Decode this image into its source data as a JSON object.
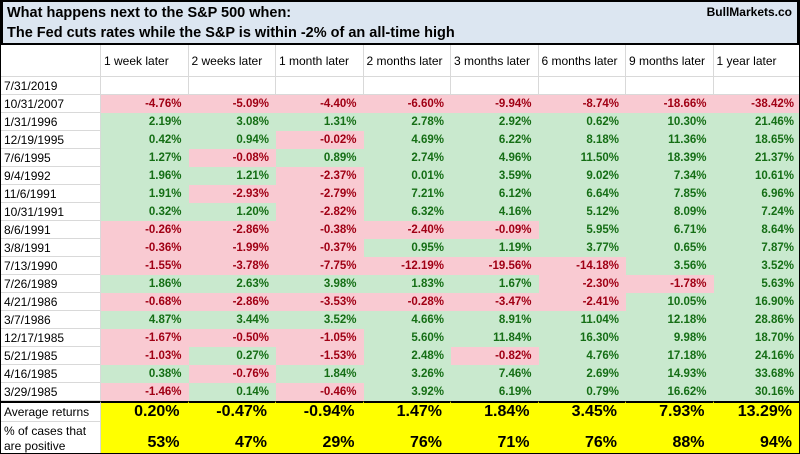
{
  "header": {
    "title_line1": "What happens next to the S&P 500 when:",
    "title_line2": "The Fed cuts rates while the S&P is within -2% of an all-time high",
    "brand": "BullMarkets.co"
  },
  "chart_data": {
    "type": "table",
    "title": "What happens next to the S&P 500 when: The Fed cuts rates while the S&P is within -2% of an all-time high",
    "columns": [
      "1 week later",
      "2 weeks later",
      "1 month later",
      "2 months later",
      "3 months later",
      "6 months later",
      "9 months later",
      "1 year later"
    ],
    "rows": [
      {
        "date": "7/31/2019",
        "values": [
          "",
          "",
          "",
          "",
          "",
          "",
          "",
          ""
        ]
      },
      {
        "date": "10/31/2007",
        "values": [
          "-4.76%",
          "-5.09%",
          "-4.40%",
          "-6.60%",
          "-9.94%",
          "-8.74%",
          "-18.66%",
          "-38.42%"
        ]
      },
      {
        "date": "1/31/1996",
        "values": [
          "2.19%",
          "3.08%",
          "1.31%",
          "2.78%",
          "2.92%",
          "0.62%",
          "10.30%",
          "21.46%"
        ]
      },
      {
        "date": "12/19/1995",
        "values": [
          "0.42%",
          "0.94%",
          "-0.02%",
          "4.69%",
          "6.22%",
          "8.18%",
          "11.36%",
          "18.65%"
        ]
      },
      {
        "date": "7/6/1995",
        "values": [
          "1.27%",
          "-0.08%",
          "0.89%",
          "2.74%",
          "4.96%",
          "11.50%",
          "18.39%",
          "21.37%"
        ]
      },
      {
        "date": "9/4/1992",
        "values": [
          "1.96%",
          "1.21%",
          "-2.37%",
          "0.01%",
          "3.59%",
          "9.02%",
          "7.34%",
          "10.61%"
        ]
      },
      {
        "date": "11/6/1991",
        "values": [
          "1.91%",
          "-2.93%",
          "-2.79%",
          "7.21%",
          "6.12%",
          "6.64%",
          "7.85%",
          "6.96%"
        ]
      },
      {
        "date": "10/31/1991",
        "values": [
          "0.32%",
          "1.20%",
          "-2.82%",
          "6.32%",
          "4.16%",
          "5.12%",
          "8.09%",
          "7.24%"
        ]
      },
      {
        "date": "8/6/1991",
        "values": [
          "-0.26%",
          "-2.86%",
          "-0.38%",
          "-2.40%",
          "-0.09%",
          "5.95%",
          "6.71%",
          "8.64%"
        ]
      },
      {
        "date": "3/8/1991",
        "values": [
          "-0.36%",
          "-1.99%",
          "-0.37%",
          "0.95%",
          "1.19%",
          "3.77%",
          "0.65%",
          "7.87%"
        ]
      },
      {
        "date": "7/13/1990",
        "values": [
          "-1.55%",
          "-3.78%",
          "-7.75%",
          "-12.19%",
          "-19.56%",
          "-14.18%",
          "3.56%",
          "3.52%"
        ]
      },
      {
        "date": "7/26/1989",
        "values": [
          "1.86%",
          "2.63%",
          "3.98%",
          "1.83%",
          "1.67%",
          "-2.30%",
          "-1.78%",
          "5.63%"
        ]
      },
      {
        "date": "4/21/1986",
        "values": [
          "-0.68%",
          "-2.86%",
          "-3.53%",
          "-0.28%",
          "-3.47%",
          "-2.41%",
          "10.05%",
          "16.90%"
        ]
      },
      {
        "date": "3/7/1986",
        "values": [
          "4.87%",
          "3.44%",
          "3.52%",
          "4.66%",
          "8.91%",
          "11.04%",
          "12.18%",
          "28.86%"
        ]
      },
      {
        "date": "12/17/1985",
        "values": [
          "-1.67%",
          "-0.50%",
          "-1.05%",
          "5.60%",
          "11.84%",
          "16.30%",
          "9.98%",
          "18.70%"
        ]
      },
      {
        "date": "5/21/1985",
        "values": [
          "-1.03%",
          "0.27%",
          "-1.53%",
          "2.48%",
          "-0.82%",
          "4.76%",
          "17.18%",
          "24.16%"
        ]
      },
      {
        "date": "4/16/1985",
        "values": [
          "0.38%",
          "-0.76%",
          "1.84%",
          "3.26%",
          "7.46%",
          "2.69%",
          "14.93%",
          "33.68%"
        ]
      },
      {
        "date": "3/29/1985",
        "values": [
          "-1.46%",
          "0.14%",
          "-0.46%",
          "3.92%",
          "6.19%",
          "0.79%",
          "16.62%",
          "30.16%"
        ]
      }
    ],
    "summary": [
      {
        "label_lines": [
          "Average returns"
        ],
        "values": [
          "0.20%",
          "-0.47%",
          "-0.94%",
          "1.47%",
          "1.84%",
          "3.45%",
          "7.93%",
          "13.29%"
        ]
      },
      {
        "label_lines": [
          "% of cases that",
          "are positive"
        ],
        "values": [
          "53%",
          "47%",
          "29%",
          "76%",
          "71%",
          "76%",
          "88%",
          "94%"
        ]
      }
    ]
  },
  "colors": {
    "title_bg": "#DCE6F1",
    "positive_bg": "#C9E9CE",
    "positive_text": "#156E15",
    "negative_bg": "#F9CAD2",
    "negative_text": "#A00014",
    "summary_bg": "#FFFF00",
    "grid": "#D9D9D9"
  }
}
